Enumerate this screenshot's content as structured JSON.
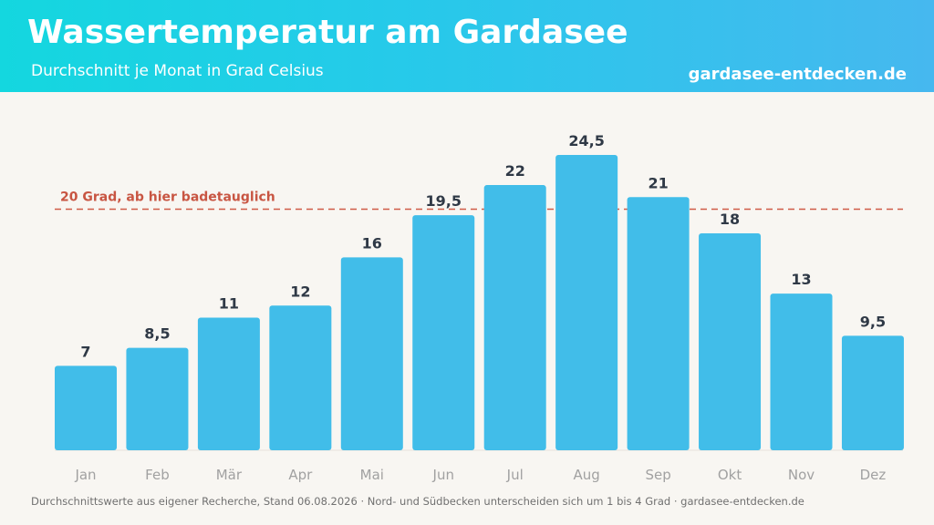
{
  "header": {
    "title": "Wassertemperatur am Gardasee",
    "subtitle": "Durchschnitt je Monat in Grad Celsius",
    "site": "gardasee-entdecken.de"
  },
  "chart_data": {
    "type": "bar",
    "title": "Wassertemperatur am Gardasee",
    "subtitle": "Durchschnitt je Monat in Grad Celsius",
    "categories": [
      "Jan",
      "Feb",
      "Mär",
      "Apr",
      "Mai",
      "Jun",
      "Jul",
      "Aug",
      "Sep",
      "Okt",
      "Nov",
      "Dez"
    ],
    "values": [
      7,
      8.5,
      11,
      12,
      16,
      19.5,
      22,
      24.5,
      21,
      18,
      13,
      9.5
    ],
    "value_labels": [
      "7",
      "8,5",
      "11",
      "12",
      "16",
      "19,5",
      "22",
      "24,5",
      "21",
      "18",
      "13",
      "9,5"
    ],
    "ylim": [
      0,
      24.5
    ],
    "grid": false,
    "legend": "none",
    "colors": {
      "bar": "#41bde9",
      "threshold": "#cf5b47",
      "label": "#2f3946",
      "axis_label": "#a1a1a1"
    },
    "reference_line": {
      "value": 20,
      "label": "20 Grad, ab hier badetauglich"
    }
  },
  "footer": {
    "note": "Durchschnittswerte aus eigener Recherche, Stand 06.08.2026 · Nord- und Südbecken unterscheiden sich um 1 bis 4 Grad · gardasee-entdecken.de"
  }
}
